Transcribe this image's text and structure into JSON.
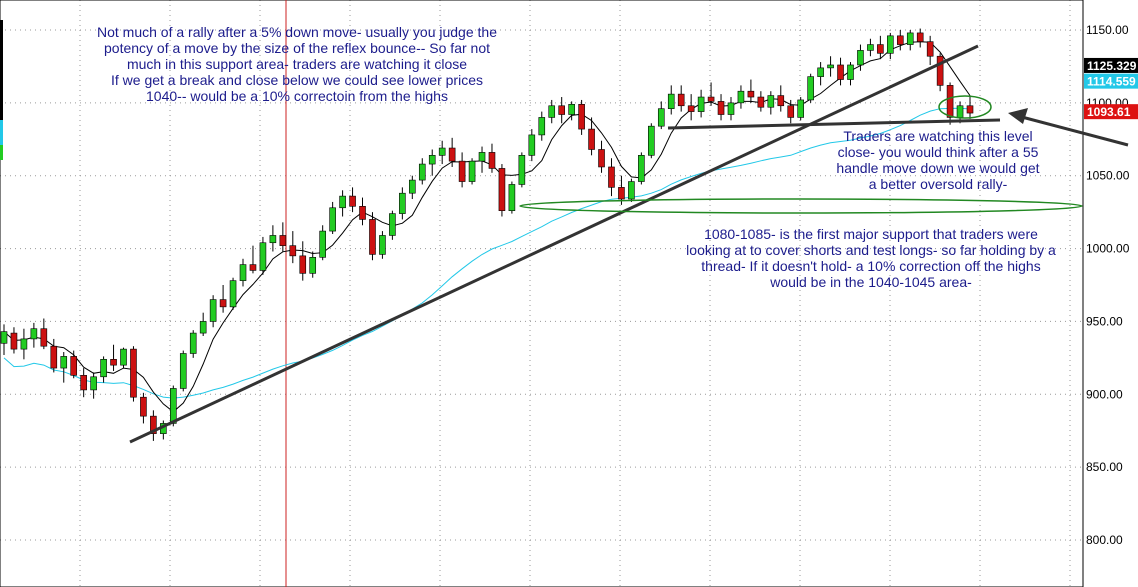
{
  "chart_data": {
    "type": "candlestick",
    "ylim": [
      780,
      1165
    ],
    "yticks": [
      800,
      850,
      900,
      950,
      1000,
      1050,
      1100,
      1150
    ],
    "ytick_labels": [
      "800.00",
      "850.00",
      "900.00",
      "950.00",
      "1000.00",
      "1050.00",
      "1100.00",
      "1150.00"
    ],
    "grid": true,
    "colors": {
      "up": "#22cc22",
      "down": "#cc1111",
      "ma_short": "#000000",
      "ma_long": "#22c8e8",
      "annotation": "#1c1c8c",
      "ellipse": "#228822",
      "vline": "#cc2222"
    },
    "tags": [
      {
        "label": "1125.329",
        "value": 1125.329,
        "bg": "#000000",
        "fg": "#ffffff"
      },
      {
        "label": "1114.559",
        "value": 1114.559,
        "bg": "#22c8e8",
        "fg": "#ffffff"
      },
      {
        "label": "1093.61",
        "value": 1093.61,
        "bg": "#dd1111",
        "fg": "#ffffff"
      }
    ],
    "series_ohlc": [
      [
        935,
        948,
        927,
        943
      ],
      [
        942,
        946,
        928,
        931
      ],
      [
        931,
        945,
        924,
        938
      ],
      [
        938,
        949,
        932,
        945
      ],
      [
        945,
        952,
        931,
        933
      ],
      [
        933,
        938,
        915,
        918
      ],
      [
        918,
        929,
        908,
        926
      ],
      [
        926,
        930,
        911,
        913
      ],
      [
        913,
        918,
        898,
        903
      ],
      [
        903,
        915,
        897,
        912
      ],
      [
        912,
        926,
        908,
        924
      ],
      [
        924,
        934,
        916,
        920
      ],
      [
        920,
        932,
        918,
        931
      ],
      [
        931,
        933,
        895,
        898
      ],
      [
        898,
        901,
        880,
        885
      ],
      [
        885,
        889,
        868,
        873
      ],
      [
        873,
        882,
        869,
        880
      ],
      [
        880,
        906,
        878,
        904
      ],
      [
        904,
        930,
        902,
        928
      ],
      [
        928,
        944,
        925,
        942
      ],
      [
        942,
        956,
        940,
        950
      ],
      [
        950,
        968,
        946,
        965
      ],
      [
        965,
        975,
        956,
        960
      ],
      [
        960,
        980,
        958,
        978
      ],
      [
        978,
        993,
        974,
        989
      ],
      [
        989,
        1002,
        983,
        985
      ],
      [
        985,
        1008,
        982,
        1004
      ],
      [
        1004,
        1016,
        998,
        1009
      ],
      [
        1009,
        1018,
        998,
        1002
      ],
      [
        1002,
        1012,
        990,
        995
      ],
      [
        995,
        1005,
        978,
        983
      ],
      [
        983,
        998,
        980,
        994
      ],
      [
        994,
        1016,
        992,
        1012
      ],
      [
        1012,
        1032,
        1010,
        1028
      ],
      [
        1028,
        1040,
        1022,
        1036
      ],
      [
        1036,
        1042,
        1025,
        1029
      ],
      [
        1029,
        1035,
        1016,
        1020
      ],
      [
        1020,
        1025,
        992,
        996
      ],
      [
        996,
        1012,
        993,
        1009
      ],
      [
        1009,
        1026,
        1006,
        1024
      ],
      [
        1024,
        1042,
        1020,
        1038
      ],
      [
        1038,
        1050,
        1034,
        1047
      ],
      [
        1047,
        1062,
        1044,
        1058
      ],
      [
        1058,
        1068,
        1050,
        1064
      ],
      [
        1064,
        1074,
        1058,
        1069
      ],
      [
        1069,
        1076,
        1056,
        1060
      ],
      [
        1060,
        1066,
        1042,
        1046
      ],
      [
        1046,
        1062,
        1044,
        1060
      ],
      [
        1060,
        1070,
        1052,
        1066
      ],
      [
        1066,
        1072,
        1052,
        1055
      ],
      [
        1055,
        1058,
        1022,
        1026
      ],
      [
        1026,
        1046,
        1024,
        1044
      ],
      [
        1044,
        1066,
        1042,
        1064
      ],
      [
        1064,
        1082,
        1060,
        1078
      ],
      [
        1078,
        1094,
        1074,
        1090
      ],
      [
        1090,
        1102,
        1086,
        1098
      ],
      [
        1098,
        1104,
        1086,
        1092
      ],
      [
        1092,
        1101,
        1088,
        1099
      ],
      [
        1099,
        1102,
        1078,
        1082
      ],
      [
        1082,
        1090,
        1064,
        1068
      ],
      [
        1068,
        1074,
        1052,
        1056
      ],
      [
        1056,
        1062,
        1036,
        1042
      ],
      [
        1042,
        1050,
        1030,
        1034
      ],
      [
        1034,
        1048,
        1032,
        1046
      ],
      [
        1046,
        1066,
        1044,
        1064
      ],
      [
        1064,
        1086,
        1062,
        1084
      ],
      [
        1084,
        1101,
        1082,
        1096
      ],
      [
        1096,
        1112,
        1092,
        1106
      ],
      [
        1106,
        1112,
        1094,
        1098
      ],
      [
        1098,
        1106,
        1088,
        1094
      ],
      [
        1094,
        1109,
        1090,
        1104
      ],
      [
        1104,
        1114,
        1098,
        1101
      ],
      [
        1101,
        1106,
        1088,
        1092
      ],
      [
        1092,
        1104,
        1088,
        1100
      ],
      [
        1100,
        1112,
        1096,
        1108
      ],
      [
        1108,
        1116,
        1100,
        1104
      ],
      [
        1104,
        1108,
        1094,
        1097
      ],
      [
        1097,
        1108,
        1092,
        1105
      ],
      [
        1105,
        1112,
        1094,
        1098
      ],
      [
        1098,
        1102,
        1086,
        1090
      ],
      [
        1090,
        1104,
        1088,
        1102
      ],
      [
        1102,
        1120,
        1100,
        1118
      ],
      [
        1118,
        1128,
        1112,
        1124
      ],
      [
        1124,
        1132,
        1118,
        1126
      ],
      [
        1126,
        1131,
        1112,
        1116
      ],
      [
        1116,
        1128,
        1112,
        1126
      ],
      [
        1126,
        1140,
        1122,
        1136
      ],
      [
        1136,
        1144,
        1132,
        1140
      ],
      [
        1140,
        1146,
        1130,
        1134
      ],
      [
        1134,
        1148,
        1130,
        1146
      ],
      [
        1146,
        1150,
        1136,
        1140
      ],
      [
        1140,
        1150,
        1136,
        1148
      ],
      [
        1148,
        1151,
        1138,
        1142
      ],
      [
        1142,
        1146,
        1126,
        1132
      ],
      [
        1132,
        1134,
        1108,
        1112
      ],
      [
        1112,
        1114,
        1085,
        1090
      ],
      [
        1090,
        1101,
        1086,
        1098
      ],
      [
        1098,
        1105,
        1089,
        1093
      ]
    ]
  },
  "annotations": {
    "top_left": [
      "Not much of a rally after a 5% down move- usually you judge the",
      "potency of a move by the size of the reflex bounce-- So far not",
      "much in this support area- traders are watching it close",
      "If we get a break and close below we could see lower prices",
      "1040-- would be a 10% correctoin from the highs"
    ],
    "right_upper": [
      "Traders are watching this level",
      "close- you would think after a 55",
      "handle move down we would get",
      "a better oversold rally-"
    ],
    "right_lower": [
      "1080-1085- is the first major support that traders were",
      "looking at to cover shorts and test longs- so far holding by a",
      "thread-  If it doesn't hold-  a 10% correction off the highs",
      "would be in the 1040-1045 area-"
    ]
  }
}
